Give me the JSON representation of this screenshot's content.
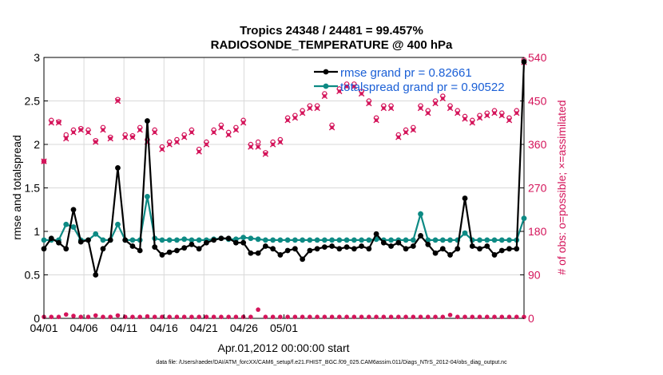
{
  "titles": {
    "line1": "Tropics 24348 / 24481 = 99.457%",
    "line2": "RADIOSONDE_TEMPERATURE @ 400 hPa"
  },
  "footer": "data file: /Users/raeder/DAI/ATM_forcXX/CAM6_setup/f.e21.FHIST_BGC.f09_025.CAM6assim.011/Diags_NTrS_2012-04/obs_diag_output.nc",
  "colors": {
    "rmse": "#000000",
    "spread": "#0d8a84",
    "obs": "#d4145a",
    "legend_text": "#1a5fd6",
    "grid": "#d9d9d9"
  },
  "chart_data": {
    "type": "line",
    "xlabel": "Apr.01,2012 00:00:00 start",
    "ylabel_left": "rmse and totalspread",
    "ylabel_right": "# of obs: o=possible; ×=assimilated",
    "x_ticks": [
      "04/01",
      "04/06",
      "04/11",
      "04/16",
      "04/21",
      "04/26",
      "05/01"
    ],
    "x_range": [
      0,
      60
    ],
    "ylim_left": [
      0,
      3
    ],
    "y_ticks_left": [
      "0",
      "0.5",
      "1",
      "1.5",
      "2",
      "2.5",
      "3"
    ],
    "ylim_right": [
      0,
      540
    ],
    "y_ticks_right": [
      "0",
      "90",
      "180",
      "270",
      "360",
      "450",
      "540"
    ],
    "legend": {
      "rmse_label": "rmse grand pr = 0.82661",
      "spread_label": "totalspread grand pr = 0.90522"
    },
    "series": [
      {
        "name": "rmse",
        "axis": "left",
        "values": [
          0.8,
          0.92,
          0.87,
          0.8,
          1.25,
          0.88,
          0.9,
          0.5,
          0.8,
          0.9,
          1.73,
          0.9,
          0.83,
          0.78,
          2.27,
          0.82,
          0.73,
          0.76,
          0.78,
          0.81,
          0.85,
          0.8,
          0.87,
          0.9,
          0.92,
          0.92,
          0.87,
          0.87,
          0.75,
          0.75,
          0.83,
          0.8,
          0.73,
          0.78,
          0.8,
          0.68,
          0.78,
          0.8,
          0.82,
          0.83,
          0.8,
          0.82,
          0.8,
          0.83,
          0.8,
          0.97,
          0.87,
          0.83,
          0.87,
          0.8,
          0.83,
          0.95,
          0.85,
          0.75,
          0.8,
          0.73,
          0.8,
          1.38,
          0.83,
          0.8,
          0.83,
          0.73,
          0.78,
          0.8,
          0.8,
          2.95
        ]
      },
      {
        "name": "totalspread",
        "axis": "left",
        "values": [
          0.9,
          0.9,
          0.9,
          1.08,
          1.05,
          0.9,
          0.9,
          0.97,
          0.9,
          0.9,
          1.08,
          0.9,
          0.9,
          0.9,
          1.4,
          0.92,
          0.9,
          0.9,
          0.9,
          0.91,
          0.9,
          0.9,
          0.9,
          0.91,
          0.92,
          0.91,
          0.91,
          0.93,
          0.92,
          0.91,
          0.9,
          0.9,
          0.9,
          0.9,
          0.9,
          0.9,
          0.9,
          0.9,
          0.9,
          0.9,
          0.9,
          0.9,
          0.9,
          0.9,
          0.9,
          0.91,
          0.9,
          0.9,
          0.9,
          0.9,
          0.9,
          1.2,
          0.9,
          0.9,
          0.9,
          0.9,
          0.9,
          0.98,
          0.9,
          0.9,
          0.9,
          0.9,
          0.9,
          0.9,
          0.9,
          1.15
        ]
      },
      {
        "name": "obs_possible",
        "axis": "right",
        "values": [
          325,
          410,
          407,
          380,
          390,
          393,
          390,
          368,
          395,
          375,
          453,
          380,
          378,
          395,
          370,
          390,
          355,
          365,
          370,
          380,
          390,
          350,
          365,
          390,
          400,
          385,
          395,
          410,
          360,
          365,
          343,
          365,
          370,
          415,
          420,
          430,
          440,
          440,
          465,
          400,
          475,
          485,
          485,
          470,
          450,
          415,
          440,
          440,
          380,
          390,
          395,
          440,
          430,
          450,
          460,
          440,
          430,
          418,
          410,
          420,
          425,
          430,
          425,
          415,
          430,
          535
        ]
      },
      {
        "name": "obs_assimilated",
        "axis": "right",
        "values": [
          325,
          405,
          405,
          372,
          385,
          390,
          385,
          365,
          390,
          372,
          450,
          375,
          375,
          390,
          365,
          385,
          350,
          360,
          365,
          375,
          385,
          345,
          360,
          385,
          395,
          380,
          390,
          405,
          355,
          355,
          340,
          360,
          365,
          410,
          415,
          425,
          435,
          435,
          460,
          395,
          470,
          480,
          480,
          465,
          445,
          410,
          435,
          435,
          375,
          385,
          390,
          435,
          425,
          445,
          455,
          435,
          425,
          413,
          405,
          415,
          420,
          425,
          420,
          410,
          425,
          530
        ]
      },
      {
        "name": "obs_zero_line",
        "axis": "right",
        "values": [
          3,
          3,
          3,
          8,
          5,
          3,
          3,
          6,
          3,
          3,
          6,
          3,
          3,
          3,
          4,
          3,
          3,
          3,
          3,
          3,
          3,
          3,
          3,
          3,
          3,
          3,
          3,
          3,
          3,
          18,
          3,
          3,
          3,
          3,
          3,
          3,
          3,
          3,
          3,
          3,
          3,
          3,
          3,
          3,
          3,
          3,
          3,
          3,
          3,
          3,
          3,
          3,
          3,
          3,
          3,
          7,
          3,
          3,
          3,
          3,
          3,
          3,
          3,
          3,
          3,
          3
        ]
      }
    ]
  }
}
